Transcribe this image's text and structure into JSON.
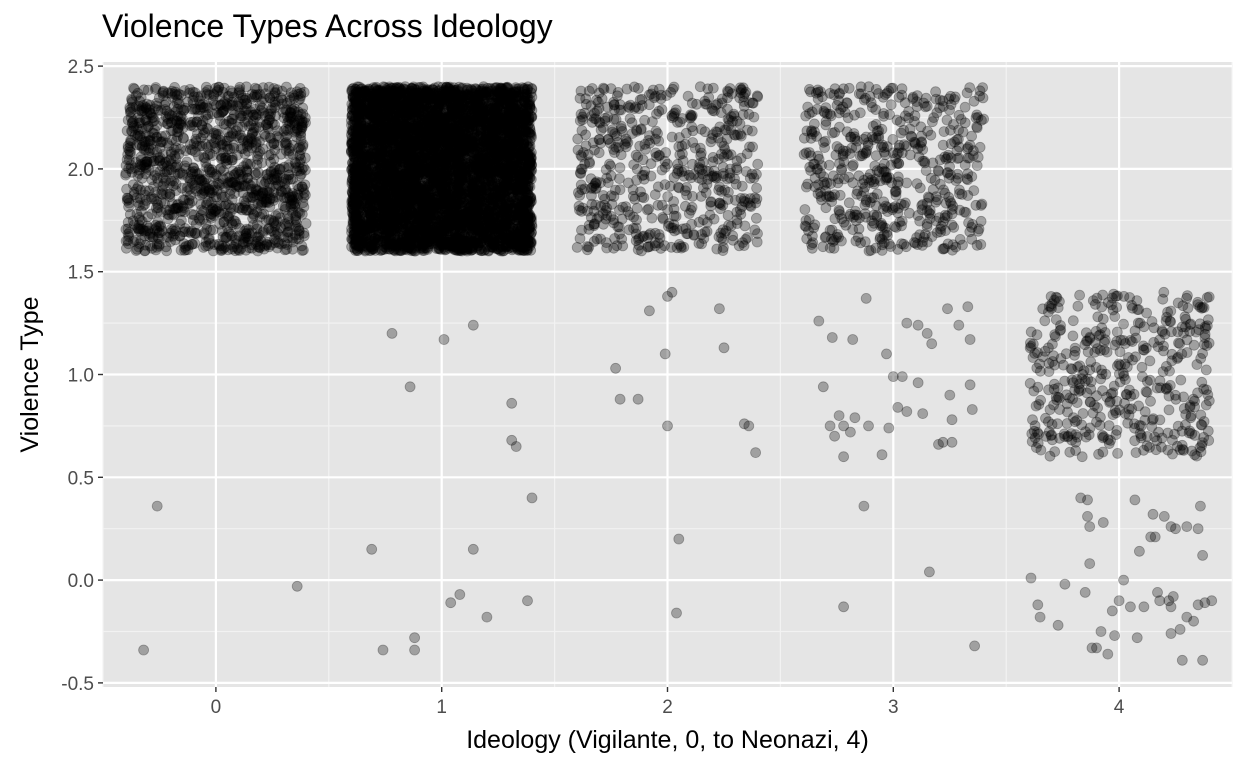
{
  "colors": {
    "panel_background": "#e5e5e5",
    "grid_major": "#ffffff",
    "grid_minor": "#f2f2f2",
    "point_fill": "#000000",
    "tick_color": "#333333",
    "tick_label_color": "#4d4d4d"
  },
  "chart_data": {
    "type": "scatter",
    "title": "Violence Types Across Ideology",
    "xlabel": "Ideology (Vigilante, 0, to Neonazi, 4)",
    "ylabel": "Violence Type",
    "xlim": [
      -0.5,
      4.5
    ],
    "ylim": [
      -0.52,
      2.52
    ],
    "x_ticks": [
      0,
      1,
      2,
      3,
      4
    ],
    "x_tick_labels": [
      "0",
      "1",
      "2",
      "3",
      "4"
    ],
    "y_ticks": [
      -0.5,
      0,
      0.5,
      1,
      1.5,
      2,
      2.5
    ],
    "y_tick_labels": [
      "-0.5",
      "0.0",
      "0.5",
      "1.0",
      "1.5",
      "2.0",
      "2.5"
    ],
    "grid": true,
    "point_alpha": 0.3,
    "jitter": "points jittered +/-0.4 around integer ideology and violence-type values",
    "series": [
      {
        "points": [
          [
            -0.32,
            -0.34
          ],
          [
            -0.26,
            0.36
          ],
          [
            0.36,
            -0.03
          ],
          [
            0.69,
            0.15
          ],
          [
            0.74,
            -0.34
          ],
          [
            0.78,
            1.2
          ],
          [
            0.86,
            0.94
          ],
          [
            0.88,
            -0.28
          ],
          [
            0.88,
            -0.34
          ],
          [
            1.01,
            1.17
          ],
          [
            1.04,
            -0.11
          ],
          [
            1.08,
            -0.07
          ],
          [
            1.14,
            1.24
          ],
          [
            1.14,
            0.15
          ],
          [
            1.2,
            -0.18
          ],
          [
            1.31,
            0.86
          ],
          [
            1.31,
            0.68
          ],
          [
            1.33,
            0.65
          ],
          [
            1.38,
            -0.1
          ],
          [
            1.4,
            0.4
          ],
          [
            1.77,
            1.03
          ],
          [
            1.79,
            0.88
          ],
          [
            1.87,
            0.88
          ],
          [
            1.92,
            1.31
          ],
          [
            1.99,
            1.1
          ],
          [
            2.0,
            1.38
          ],
          [
            2.0,
            0.75
          ],
          [
            2.02,
            1.4
          ],
          [
            2.04,
            -0.16
          ],
          [
            2.05,
            0.2
          ],
          [
            2.23,
            1.32
          ],
          [
            2.25,
            1.13
          ],
          [
            2.34,
            0.76
          ],
          [
            2.36,
            0.75
          ],
          [
            2.39,
            0.62
          ],
          [
            2.67,
            1.26
          ],
          [
            2.69,
            0.94
          ],
          [
            2.72,
            0.75
          ],
          [
            2.73,
            1.18
          ],
          [
            2.74,
            0.7
          ],
          [
            2.76,
            0.8
          ],
          [
            2.78,
            0.75
          ],
          [
            2.78,
            0.6
          ],
          [
            2.78,
            -0.13
          ],
          [
            2.81,
            0.72
          ],
          [
            2.82,
            1.17
          ],
          [
            2.83,
            0.79
          ],
          [
            2.87,
            0.36
          ],
          [
            2.88,
            1.37
          ],
          [
            2.89,
            0.75
          ],
          [
            2.95,
            0.61
          ],
          [
            2.97,
            1.1
          ],
          [
            2.98,
            0.74
          ],
          [
            3.0,
            0.99
          ],
          [
            3.02,
            0.84
          ],
          [
            3.04,
            0.99
          ],
          [
            3.06,
            1.25
          ],
          [
            3.06,
            0.82
          ],
          [
            3.11,
            0.96
          ],
          [
            3.11,
            1.24
          ],
          [
            3.13,
            0.81
          ],
          [
            3.15,
            1.2
          ],
          [
            3.16,
            0.04
          ],
          [
            3.17,
            1.15
          ],
          [
            3.2,
            0.66
          ],
          [
            3.22,
            0.67
          ],
          [
            3.24,
            1.32
          ],
          [
            3.25,
            0.9
          ],
          [
            3.26,
            0.67
          ],
          [
            3.26,
            0.78
          ],
          [
            3.29,
            1.24
          ],
          [
            3.33,
            1.33
          ],
          [
            3.34,
            0.95
          ],
          [
            3.34,
            1.17
          ],
          [
            3.35,
            0.83
          ],
          [
            3.36,
            -0.32
          ],
          [
            3.61,
            0.01
          ],
          [
            3.64,
            -0.12
          ],
          [
            3.65,
            -0.18
          ],
          [
            3.73,
            -0.22
          ],
          [
            3.76,
            -0.02
          ],
          [
            3.83,
            0.4
          ],
          [
            3.85,
            -0.06
          ],
          [
            3.86,
            0.31
          ],
          [
            3.86,
            0.39
          ],
          [
            3.87,
            0.26
          ],
          [
            3.87,
            0.08
          ],
          [
            3.88,
            -0.33
          ],
          [
            3.9,
            -0.33
          ],
          [
            3.92,
            -0.25
          ],
          [
            3.93,
            0.28
          ],
          [
            3.95,
            -0.36
          ],
          [
            3.97,
            -0.15
          ],
          [
            3.98,
            -0.27
          ],
          [
            4.0,
            -0.1
          ],
          [
            4.02,
            0.0
          ],
          [
            4.05,
            -0.13
          ],
          [
            4.07,
            0.39
          ],
          [
            4.08,
            -0.28
          ],
          [
            4.09,
            0.14
          ],
          [
            4.11,
            -0.13
          ],
          [
            4.14,
            0.21
          ],
          [
            4.15,
            0.32
          ],
          [
            4.16,
            0.21
          ],
          [
            4.17,
            -0.06
          ],
          [
            4.18,
            -0.1
          ],
          [
            4.2,
            0.31
          ],
          [
            4.22,
            -0.1
          ],
          [
            4.23,
            -0.13
          ],
          [
            4.23,
            0.26
          ],
          [
            4.23,
            -0.26
          ],
          [
            4.24,
            -0.08
          ],
          [
            4.25,
            0.25
          ],
          [
            4.27,
            -0.24
          ],
          [
            4.28,
            -0.39
          ],
          [
            4.3,
            0.26
          ],
          [
            4.3,
            -0.18
          ],
          [
            4.33,
            -0.2
          ],
          [
            4.35,
            -0.12
          ],
          [
            4.35,
            0.25
          ],
          [
            4.36,
            0.36
          ],
          [
            4.37,
            0.12
          ],
          [
            4.37,
            -0.39
          ],
          [
            4.38,
            -0.11
          ],
          [
            4.41,
            -0.1
          ]
        ]
      }
    ],
    "dense_clusters": [
      {
        "x_center": 0,
        "y_center": 2,
        "x_range": [
          -0.4,
          0.4
        ],
        "y_range": [
          1.6,
          2.4
        ],
        "n_points": 1300
      },
      {
        "x_center": 1,
        "y_center": 2,
        "x_range": [
          -0.4,
          0.4
        ],
        "y_range": [
          1.6,
          2.4
        ],
        "n_points": 5200
      },
      {
        "x_center": 2,
        "y_center": 2,
        "x_range": [
          -0.4,
          0.4
        ],
        "y_range": [
          1.6,
          2.4
        ],
        "n_points": 560
      },
      {
        "x_center": 3,
        "y_center": 2,
        "x_range": [
          -0.4,
          0.4
        ],
        "y_range": [
          1.6,
          2.4
        ],
        "n_points": 540
      },
      {
        "x_center": 4,
        "y_center": 1,
        "x_range": [
          -0.4,
          0.4
        ],
        "y_range": [
          0.6,
          1.4
        ],
        "n_points": 430
      }
    ]
  }
}
